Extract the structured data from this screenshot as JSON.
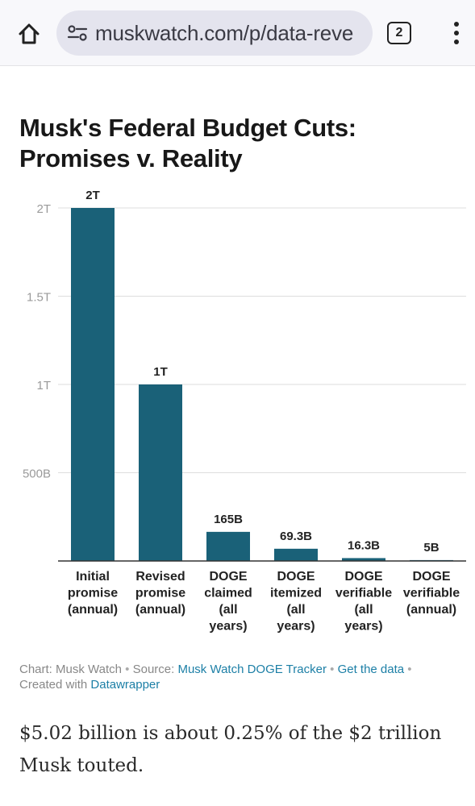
{
  "browser": {
    "url": "muskwatch.com/p/data-reve",
    "tab_count": "2",
    "icons": {
      "home": "home-icon",
      "site_settings": "tune-icon",
      "tabs": "tabs-icon",
      "menu": "more-vert-icon"
    }
  },
  "chart_data": {
    "type": "bar",
    "title": "Musk's Federal Budget Cuts: Promises v. Reality",
    "categories": [
      [
        "Initial",
        "promise",
        "(annual)"
      ],
      [
        "Revised",
        "promise",
        "(annual)"
      ],
      [
        "DOGE",
        "claimed",
        "(all",
        "years)"
      ],
      [
        "DOGE",
        "itemized",
        "(all",
        "years)"
      ],
      [
        "DOGE",
        "verifiable",
        "(all",
        "years)"
      ],
      [
        "DOGE",
        "verifiable",
        "(annual)"
      ]
    ],
    "values": [
      2000,
      1000,
      165,
      69.3,
      16.3,
      5
    ],
    "value_unit": "billions of dollars",
    "data_labels": [
      "2T",
      "1T",
      "165B",
      "69.3B",
      "16.3B",
      "5B"
    ],
    "ylim": [
      0,
      2000
    ],
    "y_ticks": [
      {
        "value": 500,
        "label": "500B"
      },
      {
        "value": 1000,
        "label": "1T"
      },
      {
        "value": 1500,
        "label": "1.5T"
      },
      {
        "value": 2000,
        "label": "2T"
      }
    ],
    "grid": true,
    "bar_color": "#1a6178",
    "xlabel": "",
    "ylabel": ""
  },
  "credit": {
    "chart_by": "Chart: Musk Watch",
    "source_prefix": "Source:",
    "source_link": "Musk Watch DOGE Tracker",
    "get_data": "Get the data",
    "created_prefix": "Created with",
    "created_link": "Datawrapper",
    "separator": "•"
  },
  "article": {
    "paragraph": "$5.02 billion is about 0.25% of the $2 trillion Musk touted."
  }
}
